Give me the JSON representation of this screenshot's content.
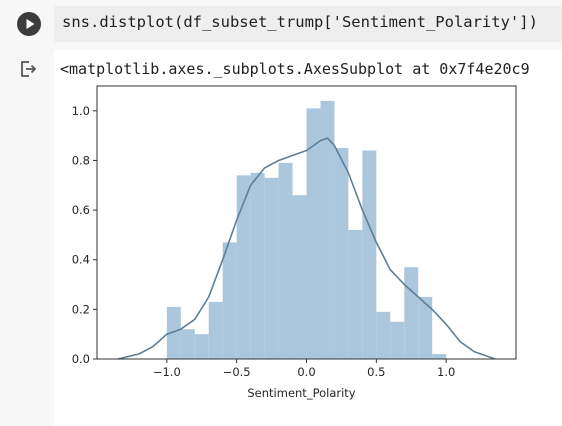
{
  "cell": {
    "code": "sns.distplot(df_subset_trump['Sentiment_Polarity'])",
    "output_repr": "<matplotlib.axes._subplots.AxesSubplot at 0x7f4e20c9",
    "run_icon": "play-icon",
    "output_icon": "output-arrow-icon"
  },
  "chart_data": {
    "type": "bar",
    "title": "",
    "xlabel": "Sentiment_Polarity",
    "ylabel": "",
    "xlim": [
      -1.5,
      1.5
    ],
    "ylim": [
      0,
      1.1
    ],
    "xticks": [
      "−1.0",
      "−0.5",
      "0.0",
      "0.5",
      "1.0"
    ],
    "xtick_values": [
      -1.0,
      -0.5,
      0.0,
      0.5,
      1.0
    ],
    "yticks": [
      "0.0",
      "0.2",
      "0.4",
      "0.6",
      "0.8",
      "1.0"
    ],
    "ytick_values": [
      0.0,
      0.2,
      0.4,
      0.6,
      0.8,
      1.0
    ],
    "bin_edges": [
      -1.0,
      -0.9,
      -0.8,
      -0.7,
      -0.6,
      -0.5,
      -0.4,
      -0.3,
      -0.2,
      -0.1,
      0.0,
      0.1,
      0.2,
      0.3,
      0.4,
      0.5,
      0.6,
      0.7,
      0.8,
      0.9,
      1.0
    ],
    "values": [
      0.21,
      0.12,
      0.1,
      0.23,
      0.47,
      0.74,
      0.75,
      0.73,
      0.79,
      0.66,
      1.01,
      1.04,
      0.85,
      0.52,
      0.84,
      0.19,
      0.15,
      0.37,
      0.25,
      0.02
    ],
    "kde": {
      "x": [
        -1.35,
        -1.2,
        -1.1,
        -1.0,
        -0.9,
        -0.8,
        -0.7,
        -0.6,
        -0.5,
        -0.4,
        -0.3,
        -0.2,
        -0.1,
        0.0,
        0.1,
        0.15,
        0.2,
        0.3,
        0.4,
        0.5,
        0.6,
        0.7,
        0.8,
        0.9,
        1.0,
        1.1,
        1.2,
        1.35
      ],
      "y": [
        0.0,
        0.02,
        0.05,
        0.1,
        0.12,
        0.16,
        0.25,
        0.4,
        0.56,
        0.7,
        0.77,
        0.8,
        0.82,
        0.84,
        0.88,
        0.89,
        0.86,
        0.75,
        0.6,
        0.47,
        0.36,
        0.3,
        0.25,
        0.2,
        0.14,
        0.07,
        0.03,
        0.0
      ]
    },
    "bar_color": "#a6c4dc",
    "kde_color": "#5d7f95",
    "grid": false,
    "legend": "none"
  }
}
